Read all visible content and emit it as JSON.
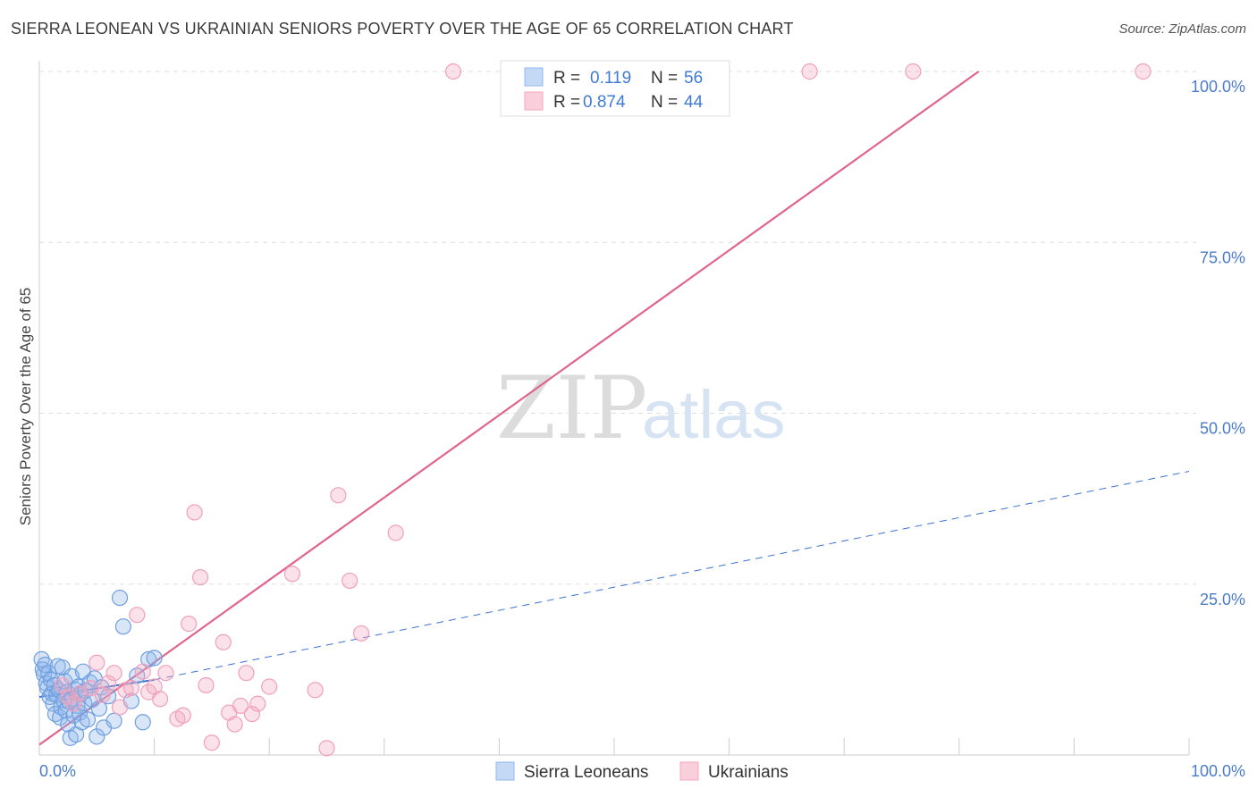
{
  "title": "SIERRA LEONEAN VS UKRAINIAN SENIORS POVERTY OVER THE AGE OF 65 CORRELATION CHART",
  "source": "Source: ZipAtlas.com",
  "watermark": {
    "zip": "ZIP",
    "atlas": "atlas"
  },
  "colors": {
    "blue": "#8fb8ec",
    "blue_line": "#3d73d1",
    "pink": "#f4a8c0",
    "pink_line": "#e0648c",
    "grid": "#dddddd"
  },
  "chart_data": {
    "type": "scatter",
    "title": "SIERRA LEONEAN VS UKRAINIAN SENIORS POVERTY OVER THE AGE OF 65 CORRELATION CHART",
    "xlabel": "",
    "ylabel": "Seniors Poverty Over the Age of 65",
    "xlim": [
      0,
      100
    ],
    "ylim": [
      0,
      100
    ],
    "x_tick_labels": {
      "min": "0.0%",
      "max": "100.0%"
    },
    "y_tick_labels": [
      {
        "value": 100,
        "label": "100.0%"
      },
      {
        "value": 75,
        "label": "75.0%"
      },
      {
        "value": 50,
        "label": "50.0%"
      },
      {
        "value": 25,
        "label": "25.0%"
      }
    ],
    "legend": [
      {
        "series": "Sierra Leoneans",
        "r_label": "R =",
        "r_value": "0.119",
        "n_label": "N =",
        "n_value": "56"
      },
      {
        "series": "Ukrainians",
        "r_label": "R =",
        "r_value": "0.874",
        "n_label": "N =",
        "n_value": "44"
      }
    ],
    "series": [
      {
        "name": "Sierra Leoneans",
        "color": "#8fb8ec",
        "points": [
          [
            0.2,
            14.0
          ],
          [
            0.3,
            12.5
          ],
          [
            0.4,
            11.8
          ],
          [
            0.5,
            13.2
          ],
          [
            0.6,
            10.5
          ],
          [
            0.7,
            9.8
          ],
          [
            0.8,
            12.0
          ],
          [
            0.9,
            8.5
          ],
          [
            1.0,
            11.0
          ],
          [
            1.1,
            9.0
          ],
          [
            1.2,
            7.5
          ],
          [
            1.3,
            10.2
          ],
          [
            1.4,
            6.0
          ],
          [
            1.5,
            8.8
          ],
          [
            1.6,
            13.0
          ],
          [
            1.7,
            9.5
          ],
          [
            1.8,
            5.5
          ],
          [
            1.9,
            7.0
          ],
          [
            2.0,
            12.8
          ],
          [
            2.1,
            8.0
          ],
          [
            2.2,
            10.8
          ],
          [
            2.3,
            6.5
          ],
          [
            2.4,
            9.2
          ],
          [
            2.5,
            4.5
          ],
          [
            2.6,
            7.8
          ],
          [
            2.7,
            2.5
          ],
          [
            2.8,
            11.5
          ],
          [
            2.9,
            8.3
          ],
          [
            3.0,
            5.8
          ],
          [
            3.1,
            9.6
          ],
          [
            3.2,
            3.0
          ],
          [
            3.3,
            7.2
          ],
          [
            3.4,
            10.0
          ],
          [
            3.5,
            6.2
          ],
          [
            3.6,
            8.9
          ],
          [
            3.7,
            4.8
          ],
          [
            3.8,
            12.2
          ],
          [
            3.9,
            7.6
          ],
          [
            4.0,
            9.4
          ],
          [
            4.2,
            5.2
          ],
          [
            4.4,
            10.6
          ],
          [
            4.6,
            8.1
          ],
          [
            4.8,
            11.2
          ],
          [
            5.0,
            2.7
          ],
          [
            5.2,
            6.8
          ],
          [
            5.4,
            9.9
          ],
          [
            5.6,
            4.0
          ],
          [
            6.0,
            8.6
          ],
          [
            6.5,
            5.0
          ],
          [
            7.0,
            23.0
          ],
          [
            7.3,
            18.8
          ],
          [
            8.0,
            7.9
          ],
          [
            8.5,
            11.6
          ],
          [
            9.0,
            4.8
          ],
          [
            9.5,
            14.0
          ],
          [
            10.0,
            14.2
          ]
        ]
      },
      {
        "name": "Ukrainians",
        "color": "#f4a8c0",
        "points": [
          [
            2.0,
            10.2
          ],
          [
            2.5,
            8.5
          ],
          [
            3.0,
            7.5
          ],
          [
            3.5,
            9.0
          ],
          [
            4.5,
            9.8
          ],
          [
            5.0,
            13.5
          ],
          [
            5.5,
            8.8
          ],
          [
            6.0,
            10.5
          ],
          [
            6.5,
            12.0
          ],
          [
            7.0,
            7.0
          ],
          [
            7.5,
            9.5
          ],
          [
            8.0,
            9.8
          ],
          [
            8.5,
            20.5
          ],
          [
            9.0,
            12.2
          ],
          [
            9.5,
            9.2
          ],
          [
            10.0,
            10.0
          ],
          [
            10.5,
            8.2
          ],
          [
            11.0,
            12.0
          ],
          [
            12.0,
            5.3
          ],
          [
            12.5,
            5.8
          ],
          [
            13.5,
            35.5
          ],
          [
            14.0,
            26.0
          ],
          [
            14.5,
            10.2
          ],
          [
            13.0,
            19.2
          ],
          [
            15.0,
            1.8
          ],
          [
            16.0,
            16.5
          ],
          [
            16.5,
            6.2
          ],
          [
            17.0,
            4.5
          ],
          [
            17.5,
            7.2
          ],
          [
            18.0,
            12.0
          ],
          [
            18.5,
            6.0
          ],
          [
            19.0,
            7.5
          ],
          [
            20.0,
            10.0
          ],
          [
            22.0,
            26.5
          ],
          [
            24.0,
            9.5
          ],
          [
            25.0,
            1.0
          ],
          [
            26.0,
            38.0
          ],
          [
            27.0,
            25.5
          ],
          [
            28.0,
            17.8
          ],
          [
            31.0,
            32.5
          ],
          [
            36.0,
            100.0
          ],
          [
            67.0,
            100.0
          ],
          [
            76.0,
            100.0
          ],
          [
            96.0,
            100.0
          ]
        ]
      }
    ],
    "trend_lines": [
      {
        "series": "Sierra Leoneans",
        "style": "solid",
        "x": [
          0,
          10
        ],
        "y": [
          8.5,
          11.0
        ]
      },
      {
        "series": "Sierra Leoneans",
        "style": "dashed",
        "x": [
          10,
          100
        ],
        "y": [
          11.0,
          41.5
        ]
      },
      {
        "series": "Ukrainians",
        "style": "solid",
        "x": [
          0,
          81.7
        ],
        "y": [
          1.5,
          100.0
        ]
      }
    ]
  }
}
